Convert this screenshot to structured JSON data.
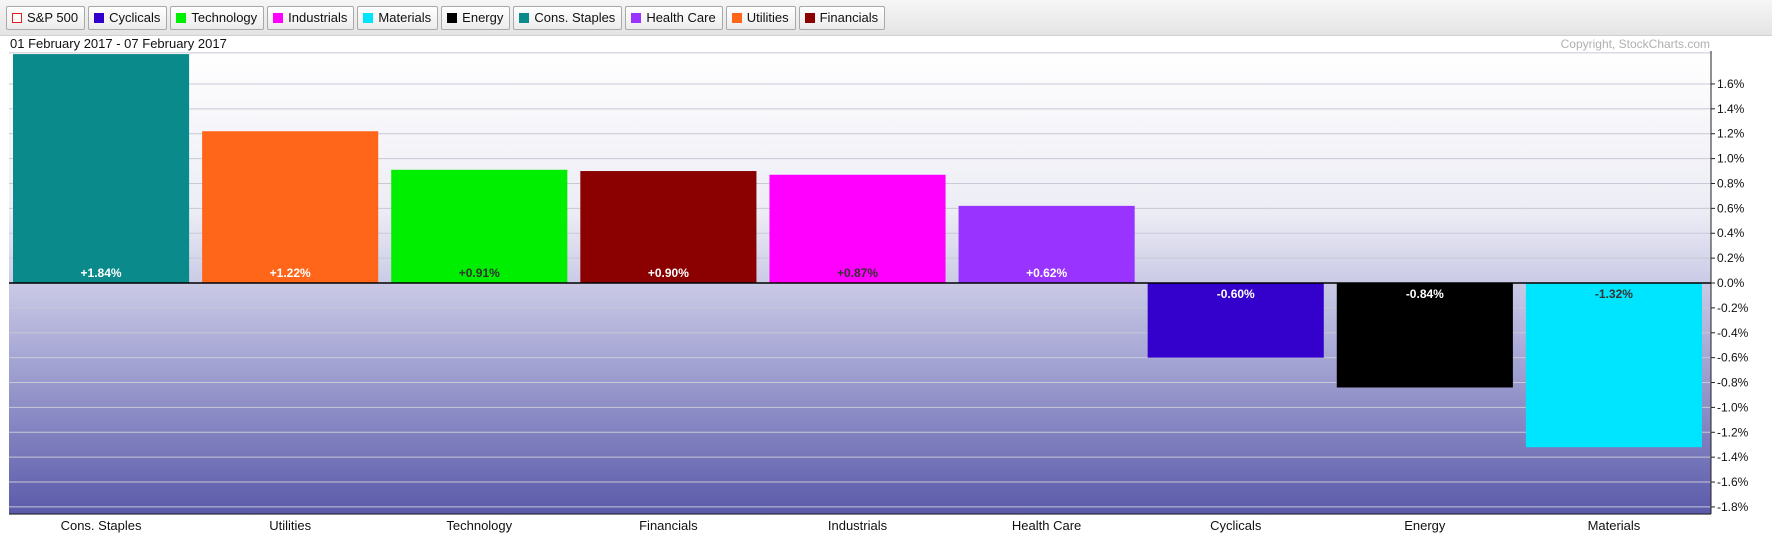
{
  "legend": [
    {
      "label": "S&P 500",
      "color": "#e02020",
      "outline": true
    },
    {
      "label": "Cyclicals",
      "color": "#3300cc"
    },
    {
      "label": "Technology",
      "color": "#00ee00"
    },
    {
      "label": "Industrials",
      "color": "#ff00ff"
    },
    {
      "label": "Materials",
      "color": "#00e5ff"
    },
    {
      "label": "Energy",
      "color": "#000000"
    },
    {
      "label": "Cons. Staples",
      "color": "#0a8a8a"
    },
    {
      "label": "Health Care",
      "color": "#9933ff"
    },
    {
      "label": "Utilities",
      "color": "#ff6619"
    },
    {
      "label": "Financials",
      "color": "#8b0000"
    }
  ],
  "date_range": "01 February 2017 - 07 February 2017",
  "copyright": "Copyright, StockCharts.com",
  "chart_data": {
    "type": "bar",
    "categories": [
      "Cons. Staples",
      "Utilities",
      "Technology",
      "Financials",
      "Industrials",
      "Health Care",
      "Cyclicals",
      "Energy",
      "Materials"
    ],
    "values": [
      1.84,
      1.22,
      0.91,
      0.9,
      0.87,
      0.62,
      -0.6,
      -0.84,
      -1.32
    ],
    "value_labels": [
      "+1.84%",
      "+1.22%",
      "+0.91%",
      "+0.90%",
      "+0.87%",
      "+0.62%",
      "-0.60%",
      "-0.84%",
      "-1.32%"
    ],
    "colors": [
      "#0a8a8a",
      "#ff6619",
      "#00ee00",
      "#8b0000",
      "#ff00ff",
      "#9933ff",
      "#3300cc",
      "#000000",
      "#00e5ff"
    ],
    "label_colors": [
      "#ffffff",
      "#ffffff",
      "#333333",
      "#ffffff",
      "#333333",
      "#ffffff",
      "#ffffff",
      "#ffffff",
      "#333333"
    ],
    "ylim": [
      -1.87,
      1.87
    ],
    "yticks": [
      1.6,
      1.4,
      1.2,
      1.0,
      0.8,
      0.6,
      0.4,
      0.2,
      0.0,
      -0.2,
      -0.4,
      -0.6,
      -0.8,
      -1.0,
      -1.2,
      -1.4,
      -1.6,
      -1.8
    ],
    "ytick_labels": [
      "1.6%",
      "1.4%",
      "1.2%",
      "1.0%",
      "0.8%",
      "0.6%",
      "0.4%",
      "0.2%",
      "0.0%",
      "-0.2%",
      "-0.4%",
      "-0.6%",
      "-0.8%",
      "-1.0%",
      "-1.2%",
      "-1.4%",
      "-1.6%",
      "-1.8%"
    ],
    "y_axis_position": "right",
    "grid": true,
    "title": "",
    "xlabel": "",
    "ylabel": ""
  }
}
